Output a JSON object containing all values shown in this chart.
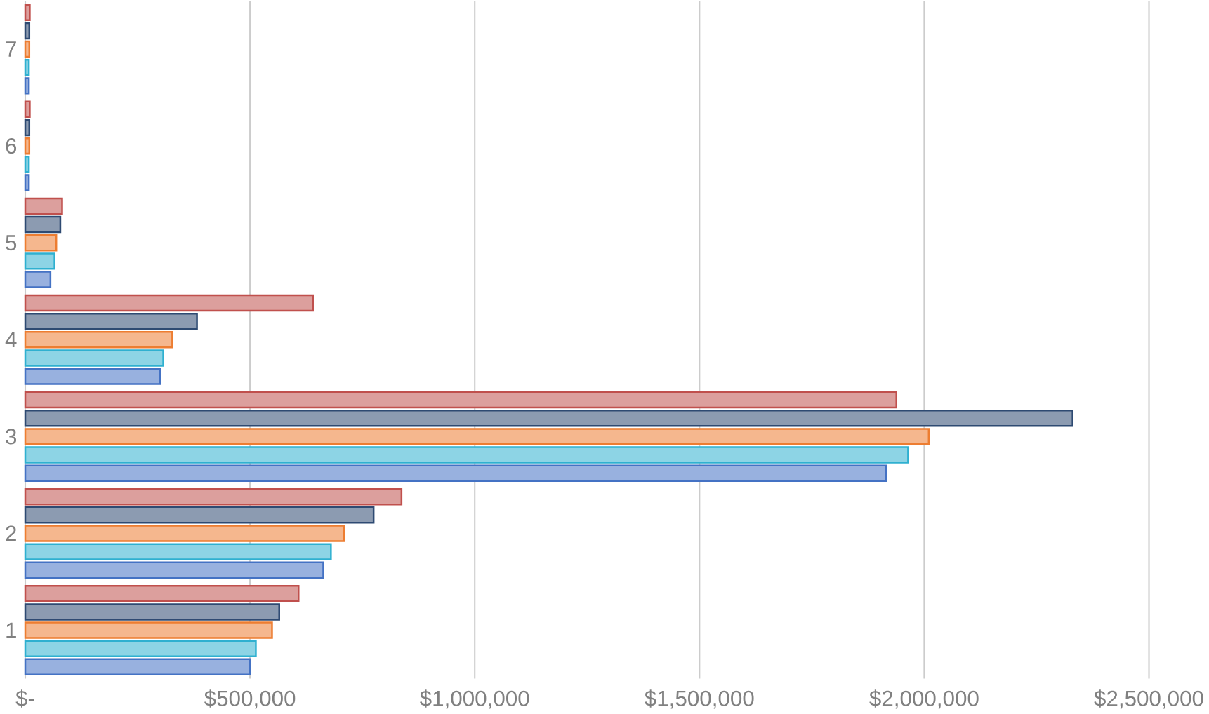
{
  "chart_data": {
    "type": "bar",
    "orientation": "horizontal",
    "categories": [
      "7",
      "6",
      "5",
      "4",
      "3",
      "2",
      "1"
    ],
    "series": [
      {
        "color": "#4472c4",
        "values": [
          8000,
          8000,
          56000,
          300000,
          1915000,
          663000,
          500000
        ]
      },
      {
        "color": "#2fb0d0",
        "values": [
          8000,
          8000,
          65000,
          307000,
          1964000,
          680000,
          513000
        ]
      },
      {
        "color": "#ed7d31",
        "values": [
          9000,
          9000,
          69000,
          327000,
          2010000,
          709000,
          549000
        ]
      },
      {
        "color": "#2e4a72",
        "values": [
          9000,
          9000,
          78000,
          382000,
          2330000,
          775000,
          565000
        ]
      },
      {
        "color": "#c0504d",
        "values": [
          10000,
          10000,
          82000,
          640000,
          1938000,
          837000,
          608000
        ]
      }
    ],
    "xlim": [
      0,
      2500000
    ],
    "xticks": [
      {
        "value": 0,
        "label": "$-"
      },
      {
        "value": 500000,
        "label": "$500,000"
      },
      {
        "value": 1000000,
        "label": "$1,000,000"
      },
      {
        "value": 1500000,
        "label": "$1,500,000"
      },
      {
        "value": 2000000,
        "label": "$2,000,000"
      },
      {
        "value": 2500000,
        "label": "$2,500,000"
      }
    ],
    "grid": "x"
  }
}
